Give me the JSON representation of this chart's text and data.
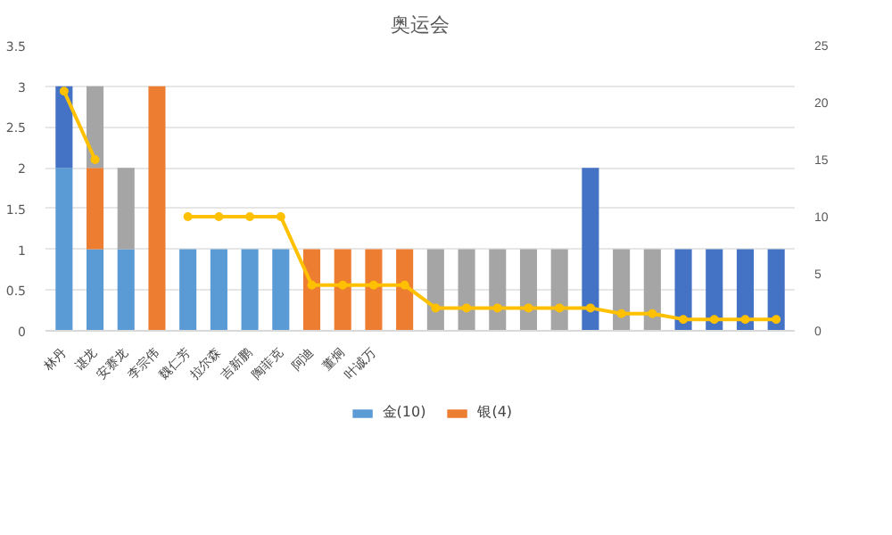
{
  "chart_data": {
    "type": "bar",
    "title": "奥运会",
    "stacked": true,
    "categories": [
      "林丹",
      "谌龙",
      "安赛龙",
      "李宗伟",
      "魏仁芳",
      "拉尔森",
      "吉新鹏",
      "陶菲克",
      "阿迪",
      "董炯",
      "叶诚万",
      null,
      null,
      null,
      null,
      null,
      null,
      null,
      null,
      null,
      null,
      null,
      null,
      null
    ],
    "series": [
      {
        "name": "金(10)",
        "color": "#5b9bd5",
        "values": [
          2,
          1,
          1,
          null,
          1,
          1,
          1,
          1,
          null,
          null,
          null,
          null,
          null,
          null,
          null,
          null,
          null,
          null,
          null,
          null,
          null,
          null,
          null,
          null
        ]
      },
      {
        "name": "银(4)",
        "color": "#ed7d31",
        "values": [
          null,
          1,
          null,
          3,
          null,
          null,
          null,
          null,
          1,
          1,
          1,
          1,
          null,
          null,
          null,
          null,
          null,
          null,
          null,
          null,
          null,
          null,
          null,
          null
        ]
      },
      {
        "color": "#a5a5a5",
        "values": [
          null,
          1,
          1,
          null,
          null,
          null,
          null,
          null,
          null,
          null,
          null,
          null,
          1,
          1,
          1,
          1,
          1,
          null,
          1,
          1,
          null,
          null,
          null,
          null
        ]
      },
      {
        "color": "#4472c4",
        "values": [
          1,
          null,
          null,
          null,
          null,
          null,
          null,
          null,
          null,
          null,
          null,
          null,
          null,
          null,
          null,
          null,
          null,
          2,
          null,
          null,
          1,
          1,
          1,
          1
        ]
      },
      {
        "type": "line",
        "axis": "y2",
        "color": "#ffc000",
        "marker": "circle",
        "values": [
          21,
          15,
          null,
          null,
          10,
          10,
          10,
          10,
          4,
          4,
          4,
          4,
          2,
          2,
          2,
          2,
          2,
          2,
          1.5,
          1.5,
          1,
          1,
          1,
          1
        ]
      }
    ],
    "ylim": [
      0,
      3.5
    ],
    "yticks": [
      0,
      0.5,
      1,
      1.5,
      2,
      2.5,
      3,
      3.5
    ],
    "y2lim": [
      0,
      25
    ],
    "y2ticks": [
      0,
      5,
      10,
      15,
      20,
      25
    ],
    "grid": "y",
    "legend": "bottom"
  }
}
